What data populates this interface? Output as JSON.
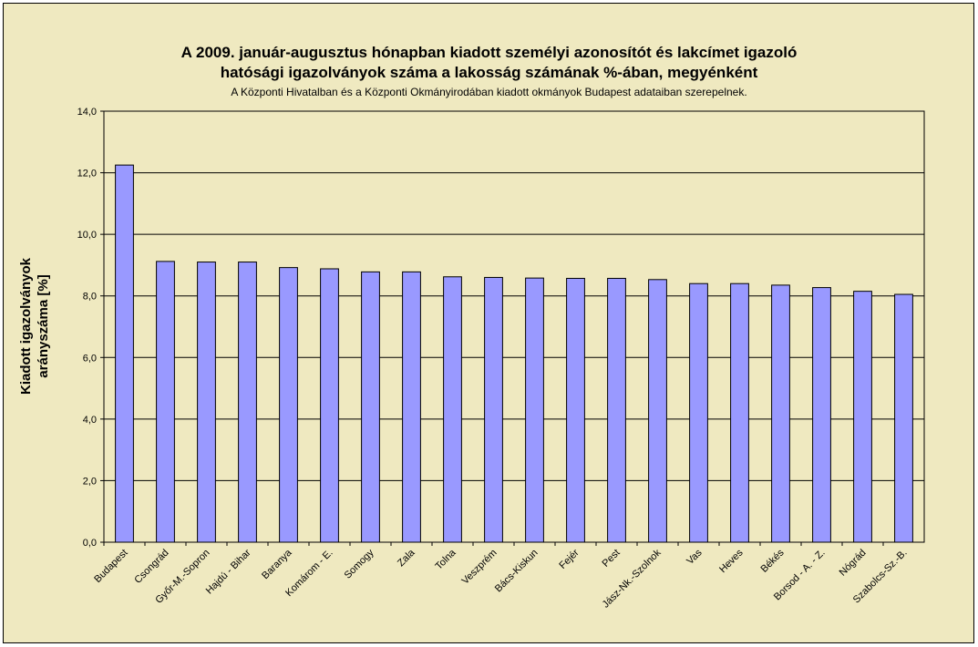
{
  "chart_data": {
    "type": "bar",
    "title": "A 2009. január-augusztus hónapban kiadott személyi azonosítót és lakcímet igazoló",
    "title_line2": "hatósági igazolványok száma a lakosság  számának %-ában, megyénként",
    "subtitle": "A Központi Hivatalban és a Központi Okmányirodában kiadott okmányok Budapest adataiban szerepelnek.",
    "ylabel_line1": "Kiadott igazolványok",
    "ylabel_line2": "arányszáma [%]",
    "xlabel": "",
    "categories": [
      "Budapest",
      "Csongrád",
      "Győr-M.-Sopron",
      "Hajdú - Bihar",
      "Baranya",
      "Komárom - E.",
      "Somogy",
      "Zala",
      "Tolna",
      "Veszprém",
      "Bács-Kiskun",
      "Fejér",
      "Pest",
      "Jász-Nk.-Szolnok",
      "Vas",
      "Heves",
      "Békés",
      "Borsod - A. - Z.",
      "Nógrád",
      "Szabolcs-Sz.-B."
    ],
    "values": [
      12.25,
      9.12,
      9.1,
      9.1,
      8.92,
      8.88,
      8.78,
      8.78,
      8.62,
      8.6,
      8.58,
      8.57,
      8.57,
      8.53,
      8.4,
      8.4,
      8.35,
      8.27,
      8.15,
      8.05
    ],
    "ylim": [
      0,
      14
    ],
    "yticks": [
      "0,0",
      "2,0",
      "4,0",
      "6,0",
      "8,0",
      "10,0",
      "12,0",
      "14,0"
    ],
    "grid": true,
    "legend": "none",
    "colors": {
      "bar": "#9999ff",
      "plot_bg": "#efe9c0",
      "chart_bg": "#efe9c0"
    }
  }
}
